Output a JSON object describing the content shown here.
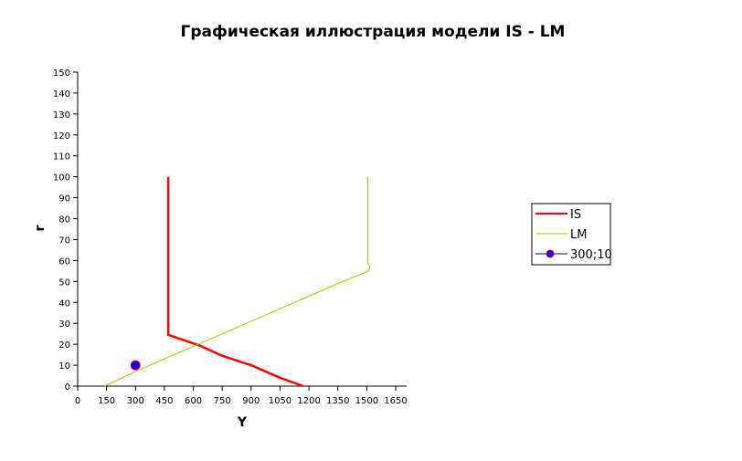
{
  "chart_data": {
    "type": "line",
    "title": "Графическая иллюстрация модели IS - LM",
    "xlabel": "Y",
    "ylabel": "r",
    "xlim": [
      0,
      1650
    ],
    "ylim": [
      0,
      150
    ],
    "xticks": [
      0,
      150,
      300,
      450,
      600,
      750,
      900,
      1050,
      1200,
      1350,
      1500,
      1650
    ],
    "yticks": [
      0,
      10,
      20,
      30,
      40,
      50,
      60,
      70,
      80,
      90,
      100,
      110,
      120,
      130,
      140,
      150
    ],
    "grid": false,
    "legend_position": "right",
    "series": [
      {
        "name": "IS",
        "color": "#ff0000",
        "points": [
          [
            470,
            100
          ],
          [
            470,
            24.5
          ],
          [
            630,
            19.5
          ],
          [
            750,
            14.5
          ],
          [
            900,
            10
          ],
          [
            1050,
            4
          ],
          [
            1170,
            0
          ]
        ]
      },
      {
        "name": "LM",
        "color": "#a8c800",
        "points": [
          [
            140,
            0
          ],
          [
            300,
            7
          ],
          [
            450,
            13
          ],
          [
            600,
            19
          ],
          [
            750,
            25
          ],
          [
            900,
            31
          ],
          [
            1050,
            37
          ],
          [
            1200,
            43
          ],
          [
            1350,
            49
          ],
          [
            1470,
            53.5
          ],
          [
            1510,
            55
          ],
          [
            1515,
            57
          ],
          [
            1505,
            59
          ],
          [
            1505,
            100
          ]
        ]
      },
      {
        "name": "300;10",
        "type": "scatter",
        "color": "#0000ff",
        "edge": "#ff0000",
        "points": [
          [
            300,
            10
          ]
        ]
      }
    ]
  }
}
